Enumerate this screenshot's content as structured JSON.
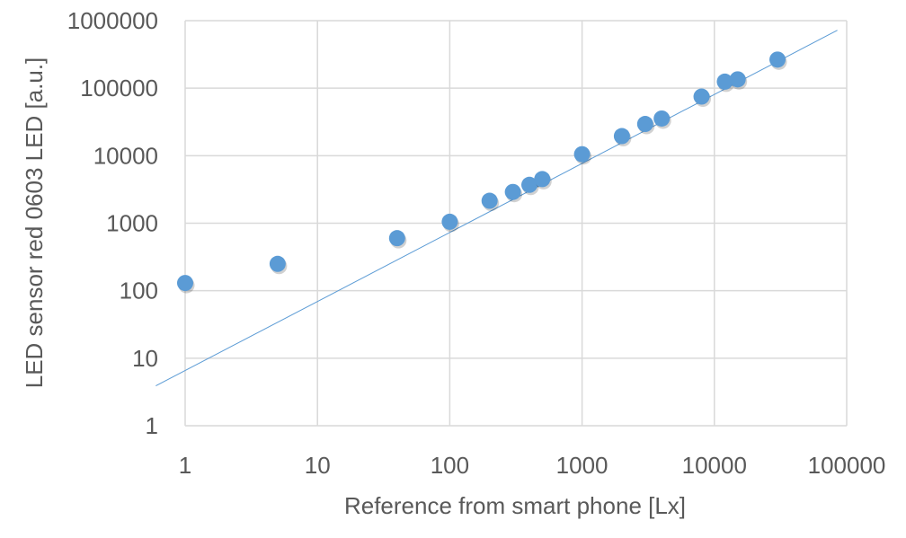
{
  "chart_data": {
    "type": "scatter",
    "xlabel": "Reference from smart phone [Lx]",
    "ylabel": "LED sensor red 0603 LED [a.u.]",
    "x_scale": "log",
    "y_scale": "log",
    "xlim": [
      1,
      100000
    ],
    "ylim": [
      1,
      1000000
    ],
    "x_ticks": [
      "1",
      "10",
      "100",
      "1000",
      "10000",
      "100000"
    ],
    "y_ticks": [
      "1",
      "10",
      "100",
      "1000",
      "10000",
      "100000",
      "1000000"
    ],
    "grid": true,
    "legend": "none",
    "marker_color": "#5B9BD5",
    "trendline_color": "#5B9BD5",
    "series": [
      {
        "points": [
          {
            "x": 1,
            "y": 130
          },
          {
            "x": 5,
            "y": 250
          },
          {
            "x": 40,
            "y": 600
          },
          {
            "x": 100,
            "y": 1050
          },
          {
            "x": 200,
            "y": 2150
          },
          {
            "x": 300,
            "y": 2900
          },
          {
            "x": 400,
            "y": 3700
          },
          {
            "x": 500,
            "y": 4500
          },
          {
            "x": 1000,
            "y": 10500
          },
          {
            "x": 2000,
            "y": 19500
          },
          {
            "x": 3000,
            "y": 29500
          },
          {
            "x": 4000,
            "y": 35500
          },
          {
            "x": 8000,
            "y": 75000
          },
          {
            "x": 12000,
            "y": 125000
          },
          {
            "x": 15000,
            "y": 135000
          },
          {
            "x": 30000,
            "y": 265000
          }
        ]
      }
    ],
    "trendline": {
      "type": "power",
      "start": {
        "x": 0.6,
        "y": 3.9
      },
      "end": {
        "x": 85000,
        "y": 720000
      }
    }
  }
}
